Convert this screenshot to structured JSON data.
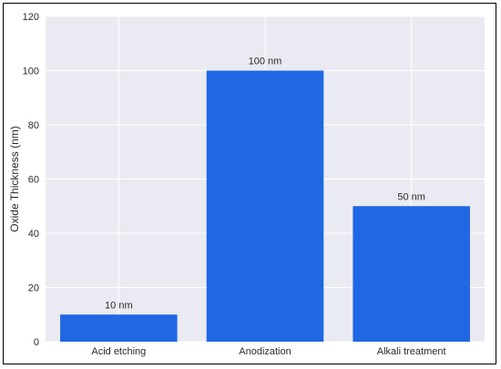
{
  "chart_data": {
    "type": "bar",
    "categories": [
      "Acid etching",
      "Anodization",
      "Alkali treatment"
    ],
    "values": [
      10,
      100,
      50
    ],
    "data_labels": [
      "10 nm",
      "100 nm",
      "50 nm"
    ],
    "title": "",
    "xlabel": "",
    "ylabel": "Oxide Thickness (nm)",
    "ylim": [
      0,
      120
    ],
    "yticks": [
      0,
      20,
      40,
      60,
      80,
      100,
      120
    ],
    "grid": true,
    "legend": "none",
    "colors": {
      "bar": "#1f67e3",
      "plot_background": "#eaeaf2",
      "grid": "#ffffff",
      "text": "#2b2b2b",
      "frame": "#000000"
    }
  }
}
